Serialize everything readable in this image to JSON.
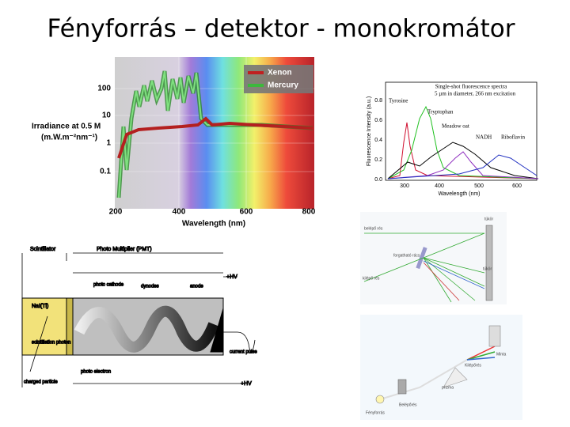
{
  "title": "Fényforrás – detektor - monokromátor",
  "lamp_spectrum": {
    "legend": [
      "Xenon",
      "Mercury"
    ],
    "y_label": [
      "Irradiance at 0.5 M",
      "(m.W.m⁻²nm⁻¹)"
    ],
    "y_ticks": [
      "100",
      "10",
      "1",
      "0.1"
    ],
    "x_ticks": [
      "200",
      "400",
      "600",
      "800"
    ],
    "x_label": "Wavelength (nm)"
  },
  "fluorescence": {
    "title": [
      "Single-shot fluorescence spectra",
      "5 µm in diameter, 266 nm excitation"
    ],
    "y_label": "Fluorescence Intensity (a.u.)",
    "y_ticks": [
      "0.8",
      "0.6",
      "0.4",
      "0.2",
      "0.0"
    ],
    "x_ticks": [
      "300",
      "400",
      "500",
      "600"
    ],
    "x_label": "Wavelength (nm)",
    "labels": [
      "Tyrosine",
      "Tryptophan",
      "Meadow oat",
      "NADH",
      "Riboflavin"
    ]
  },
  "pmt": {
    "labels": [
      "Scintillator",
      "Photo Multiplier (PMT)",
      "+HV",
      "photo cathode",
      "dynodes",
      "anode",
      "NaI(Tl)",
      "scintillation photon",
      "photo electron",
      "charged particle",
      "current pulse",
      "+HV"
    ]
  },
  "grating": {
    "labels": [
      "belépő rés",
      "tükör",
      "forgatható rács",
      "tükör",
      "kilépő rés"
    ]
  },
  "prism": {
    "labels": [
      "Minta",
      "Kilépőrés",
      "prizma",
      "Belépőrés",
      "Fényforrás"
    ]
  }
}
